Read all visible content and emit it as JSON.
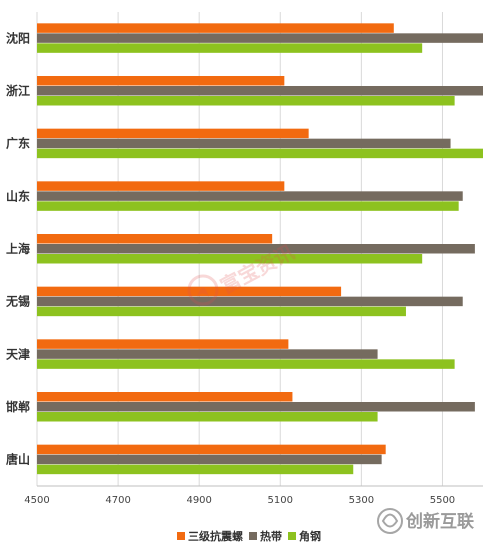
{
  "chart_data": {
    "type": "bar",
    "orientation": "horizontal",
    "categories": [
      "沈阳",
      "浙江",
      "广东",
      "山东",
      "上海",
      "无锡",
      "天津",
      "邯郸",
      "唐山"
    ],
    "series": [
      {
        "name": "三级抗震螺",
        "color": "#f26a10",
        "values": [
          5380,
          5110,
          5170,
          5110,
          5080,
          5250,
          5120,
          5130,
          5360
        ]
      },
      {
        "name": "热带",
        "color": "#756b5f",
        "values": [
          5600,
          5600,
          5520,
          5550,
          5580,
          5550,
          5340,
          5580,
          5350
        ]
      },
      {
        "name": "角钢",
        "color": "#8dc21f",
        "values": [
          5450,
          5530,
          5600,
          5540,
          5450,
          5410,
          5530,
          5340,
          5280
        ]
      }
    ],
    "xlim": [
      4500,
      5600
    ],
    "xticks": [
      "4500",
      "4700",
      "4900",
      "5100",
      "5300",
      "5500"
    ],
    "grid": true,
    "legend_position": "bottom"
  },
  "watermark": {
    "text": "富宝资讯"
  },
  "logo": {
    "text": "创新互联"
  }
}
